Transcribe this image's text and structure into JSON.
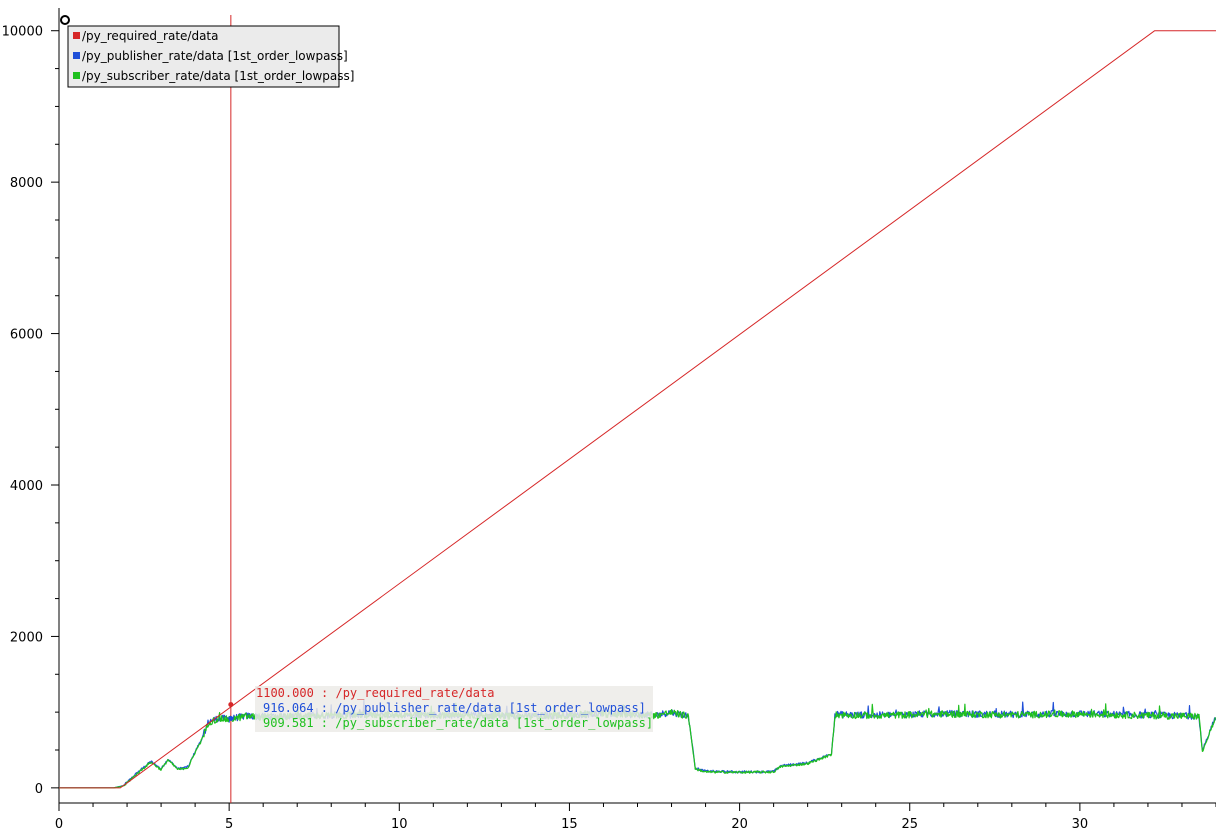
{
  "chart_data": {
    "type": "line",
    "title": "",
    "xlabel": "",
    "ylabel": "",
    "xlim": [
      0,
      34
    ],
    "ylim": [
      -200,
      10300
    ],
    "x_ticks": [
      0,
      5,
      10,
      15,
      20,
      25,
      30
    ],
    "x_tick_labels": [
      "0",
      "5",
      "10",
      "15",
      "20",
      "25",
      "30"
    ],
    "y_ticks": [
      0,
      2000,
      4000,
      6000,
      8000,
      10000
    ],
    "y_tick_labels": [
      "0",
      "2000",
      "4000",
      "6000",
      "8000",
      "10000"
    ],
    "grid": false,
    "legend_position": "top-left",
    "series": [
      {
        "name": "/py_required_rate/data",
        "color": "#d62728",
        "x": [
          0,
          1.8,
          32.2,
          34
        ],
        "y": [
          0,
          0,
          10000,
          10000
        ]
      },
      {
        "name": "/py_publisher_rate/data [1st_order_lowpass]",
        "color": "#1f4fd8",
        "x": [
          0,
          1.6,
          1.9,
          2.3,
          2.7,
          3.0,
          3.2,
          3.5,
          3.8,
          4.0,
          4.2,
          4.4,
          4.7,
          5.0,
          5.5,
          6.0,
          8.0,
          10.0,
          12.0,
          14.0,
          16.0,
          17.5,
          18.0,
          18.5,
          18.7,
          19.0,
          20.0,
          21.0,
          21.2,
          22.0,
          22.7,
          22.8,
          24.0,
          26.0,
          28.0,
          30.0,
          32.0,
          33.5,
          33.6,
          34.0
        ],
        "y": [
          0,
          0,
          30,
          200,
          350,
          250,
          380,
          250,
          280,
          480,
          650,
          880,
          920,
          910,
          950,
          940,
          960,
          970,
          960,
          950,
          980,
          960,
          1000,
          950,
          260,
          220,
          210,
          215,
          290,
          330,
          450,
          970,
          960,
          980,
          970,
          980,
          960,
          950,
          500,
          930
        ]
      },
      {
        "name": "/py_subscriber_rate/data [1st_order_lowpass]",
        "color": "#1fc01f",
        "x": [
          0,
          1.6,
          1.9,
          2.3,
          2.7,
          3.0,
          3.2,
          3.5,
          3.8,
          4.0,
          4.2,
          4.4,
          4.7,
          5.0,
          5.5,
          6.0,
          8.0,
          10.0,
          12.0,
          14.0,
          16.0,
          17.5,
          18.0,
          18.5,
          18.7,
          19.0,
          20.0,
          21.0,
          21.2,
          22.0,
          22.7,
          22.8,
          24.0,
          26.0,
          28.0,
          30.0,
          32.0,
          33.5,
          33.6,
          34.0
        ],
        "y": [
          0,
          0,
          25,
          190,
          340,
          240,
          370,
          240,
          270,
          470,
          640,
          870,
          910,
          905,
          945,
          935,
          955,
          965,
          955,
          945,
          975,
          955,
          995,
          945,
          250,
          210,
          205,
          210,
          280,
          320,
          440,
          965,
          955,
          975,
          965,
          975,
          955,
          945,
          480,
          920
        ]
      }
    ],
    "cursor": {
      "x": 5.05,
      "readouts": [
        {
          "text": "1100.000 : /py_required_rate/data",
          "color": "#d62728",
          "value": 1100.0
        },
        {
          "text": "916.064 : /py_publisher_rate/data [1st_order_lowpass]",
          "color": "#1f4fd8",
          "value": 916.064
        },
        {
          "text": "909.581 : /py_subscriber_rate/data [1st_order_lowpass]",
          "color": "#1fc01f",
          "value": 909.581
        }
      ]
    }
  }
}
